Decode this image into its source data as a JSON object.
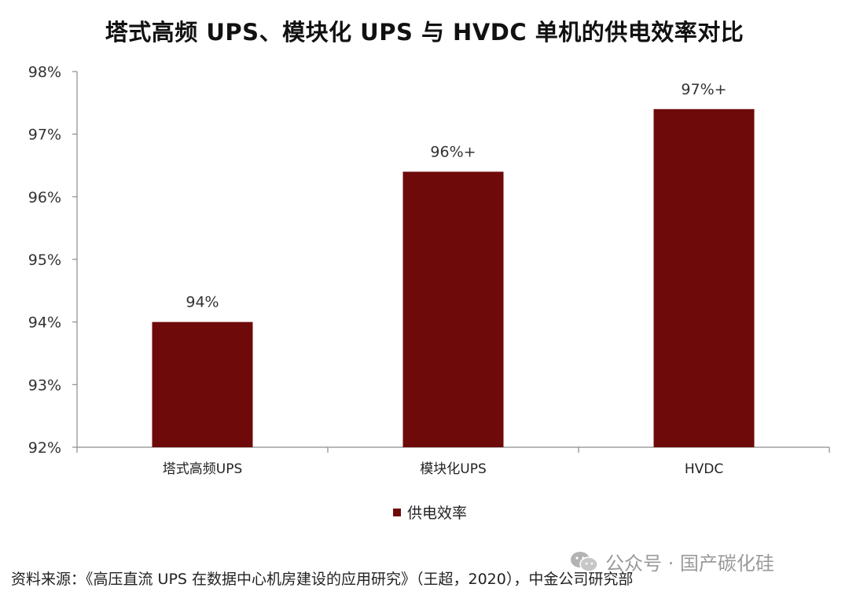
{
  "title": "塔式高频 UPS、模块化 UPS 与 HVDC 单机的供电效率对比",
  "legend_label": "供电效率",
  "source": "资料来源：《高压直流 UPS 在数据中心机房建设的应用研究》（王超，2020），中金公司研究部",
  "watermark": "公众号 · 国产碳化硅",
  "watermark_icon": "wechat-icon",
  "bar_color": "#6e0a0a",
  "chart_data": {
    "type": "bar",
    "categories": [
      "塔式高频UPS",
      "模块化UPS",
      "HVDC"
    ],
    "series": [
      {
        "name": "供电效率",
        "values": [
          94,
          96.4,
          97.4
        ]
      }
    ],
    "data_labels": [
      "94%",
      "96%+",
      "97%+"
    ],
    "ylim": [
      92,
      98
    ],
    "yticks": [
      "92%",
      "93%",
      "94%",
      "95%",
      "96%",
      "97%",
      "98%"
    ],
    "ytick_values": [
      92,
      93,
      94,
      95,
      96,
      97,
      98
    ],
    "legend_position": "bottom-center",
    "grid": false
  }
}
